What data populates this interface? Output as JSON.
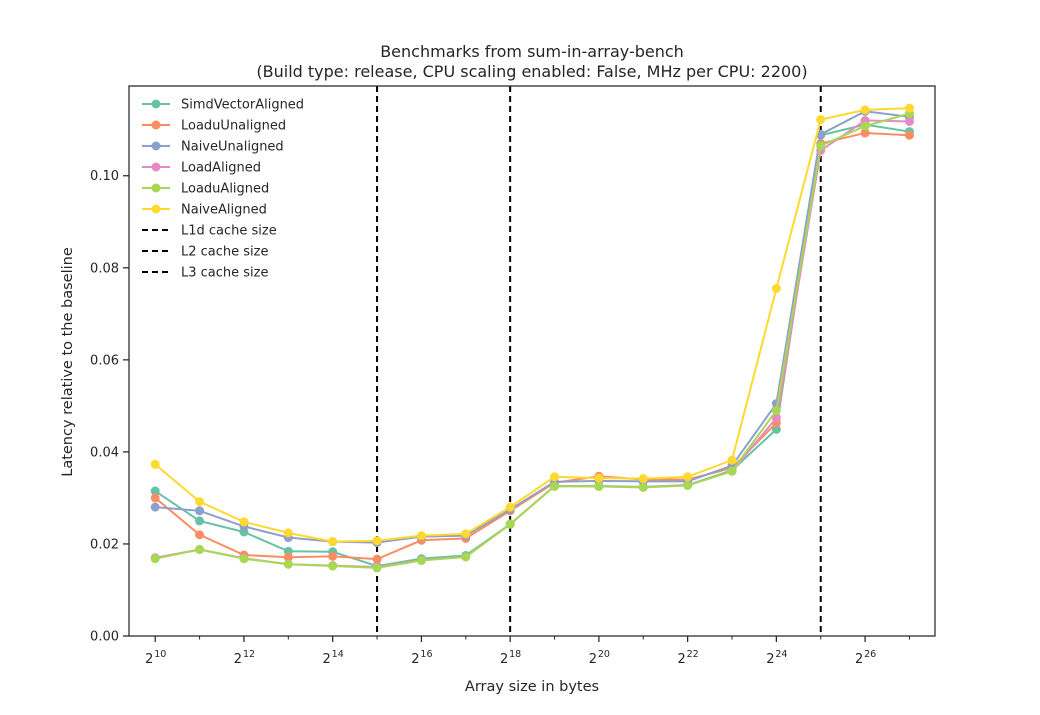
{
  "chart_data": {
    "type": "line",
    "title": "Benchmarks from sum-in-array-bench",
    "subtitle": "(Build type: release, CPU scaling enabled: False, MHz per CPU: 2200)",
    "xlabel": "Array size in bytes",
    "ylabel": "Latency relative to the baseline",
    "x_scale": "log2",
    "x": [
      1024,
      2048,
      4096,
      8192,
      16384,
      32768,
      65536,
      131072,
      262144,
      524288,
      1048576,
      2097152,
      4194304,
      8388608,
      16777216,
      33554432,
      67108864,
      134217728
    ],
    "x_ticks": [
      {
        "base": "2",
        "exp": "10",
        "value": 1024
      },
      {
        "base": "2",
        "exp": "12",
        "value": 4096
      },
      {
        "base": "2",
        "exp": "14",
        "value": 16384
      },
      {
        "base": "2",
        "exp": "16",
        "value": 65536
      },
      {
        "base": "2",
        "exp": "18",
        "value": 262144
      },
      {
        "base": "2",
        "exp": "20",
        "value": 1048576
      },
      {
        "base": "2",
        "exp": "22",
        "value": 4194304
      },
      {
        "base": "2",
        "exp": "24",
        "value": 16777216
      },
      {
        "base": "2",
        "exp": "26",
        "value": 67108864
      }
    ],
    "xlim": [
      680,
      200000000
    ],
    "ylim": [
      0,
      0.1195
    ],
    "y_ticks": [
      "0.00",
      "0.02",
      "0.04",
      "0.06",
      "0.08",
      "0.10"
    ],
    "y_tick_values": [
      0,
      0.02,
      0.04,
      0.06,
      0.08,
      0.1
    ],
    "grid": false,
    "legend_position": "top-left",
    "series": [
      {
        "name": "SimdVectorAligned",
        "color": "#66c2a5",
        "values": [
          0.0315,
          0.025,
          0.0226,
          0.0184,
          0.0183,
          0.0152,
          0.0168,
          0.0175,
          0.0243,
          0.0326,
          0.0326,
          0.0324,
          0.0328,
          0.036,
          0.0449,
          0.1088,
          0.1111,
          0.1096
        ]
      },
      {
        "name": "LoaduUnaligned",
        "color": "#fc8d62",
        "values": [
          0.03,
          0.022,
          0.0176,
          0.0171,
          0.0173,
          0.0167,
          0.0208,
          0.0212,
          0.0272,
          0.0333,
          0.0347,
          0.034,
          0.034,
          0.0365,
          0.0463,
          0.107,
          0.1093,
          0.1088
        ]
      },
      {
        "name": "NaiveUnaligned",
        "color": "#8da0cb",
        "values": [
          0.028,
          0.0272,
          0.0238,
          0.0214,
          0.0205,
          0.0203,
          0.0216,
          0.0218,
          0.0275,
          0.0335,
          0.0337,
          0.0336,
          0.0336,
          0.037,
          0.0505,
          0.109,
          0.114,
          0.1128
        ]
      },
      {
        "name": "LoadAligned",
        "color": "#e78ac3",
        "values": [
          0.017,
          0.0188,
          0.0169,
          0.0156,
          0.0153,
          0.015,
          0.0165,
          0.0172,
          0.0243,
          0.0326,
          0.0325,
          0.0323,
          0.0328,
          0.0358,
          0.0474,
          0.1055,
          0.112,
          0.1118
        ]
      },
      {
        "name": "LoaduAligned",
        "color": "#a6d854",
        "values": [
          0.0168,
          0.0188,
          0.0168,
          0.0156,
          0.0152,
          0.0148,
          0.0164,
          0.0172,
          0.0243,
          0.0325,
          0.0325,
          0.0323,
          0.0327,
          0.0358,
          0.049,
          0.1065,
          0.1108,
          0.1135
        ]
      },
      {
        "name": "NaiveAligned",
        "color": "#ffd92f",
        "values": [
          0.0373,
          0.0292,
          0.0248,
          0.0224,
          0.0205,
          0.0207,
          0.0218,
          0.0222,
          0.028,
          0.0346,
          0.0343,
          0.0342,
          0.0346,
          0.0382,
          0.0755,
          0.1122,
          0.1143,
          0.1147
        ]
      }
    ],
    "vlines": [
      {
        "name": "L1d cache size",
        "x": 32768,
        "color": "#000000"
      },
      {
        "name": "L2 cache size",
        "x": 262144,
        "color": "#000000"
      },
      {
        "name": "L3 cache size",
        "x": 33554432,
        "color": "#000000"
      }
    ]
  }
}
